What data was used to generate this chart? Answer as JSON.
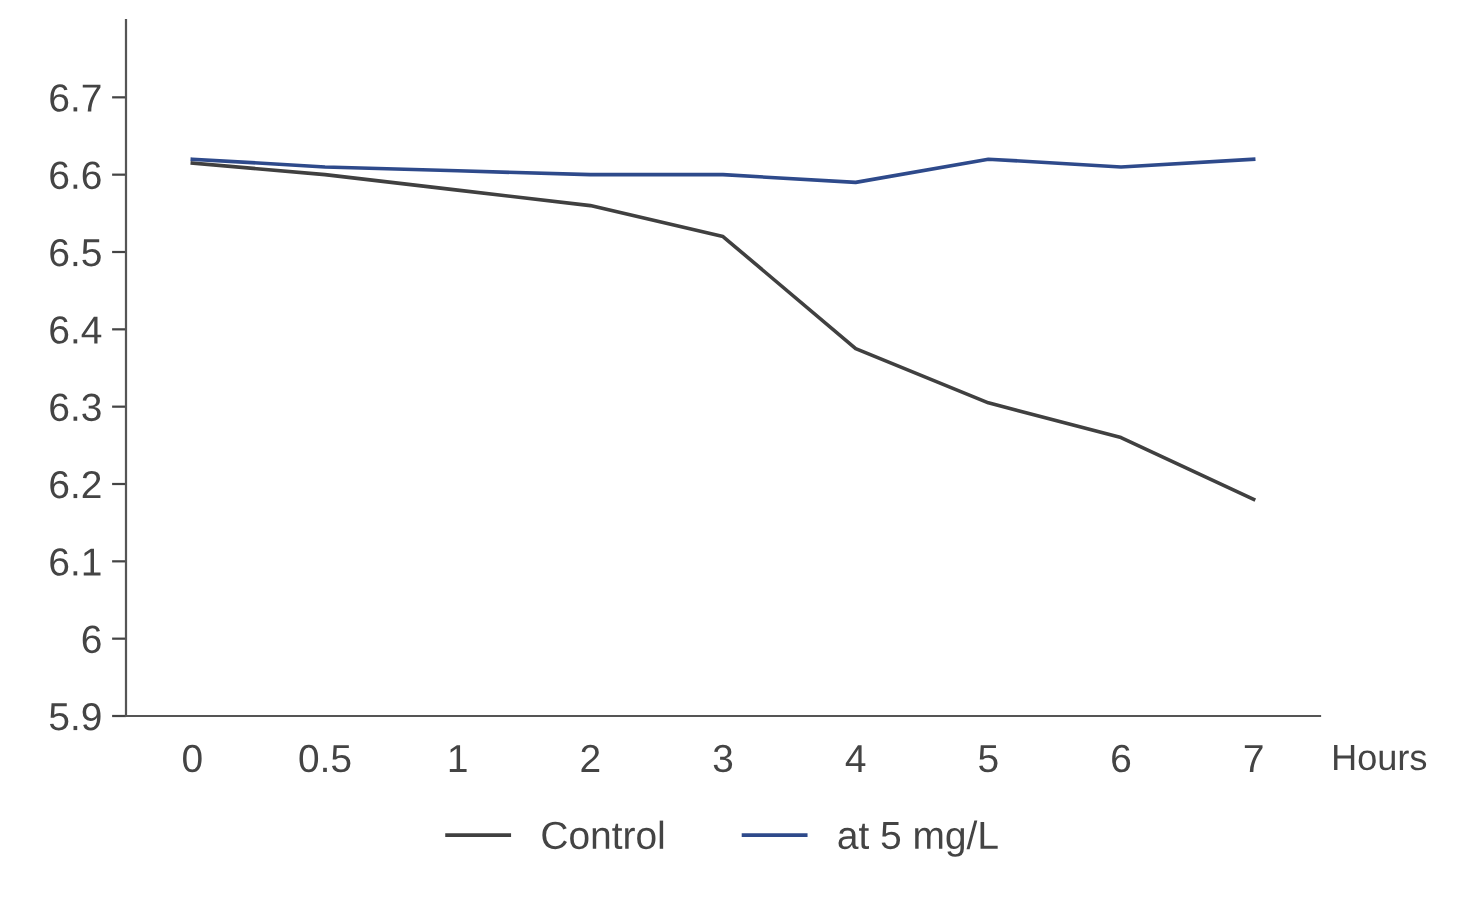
{
  "chart_data": {
    "type": "line",
    "xlabel": "Hours",
    "categories": [
      "0",
      "0.5",
      "1",
      "2",
      "3",
      "4",
      "5",
      "6",
      "7"
    ],
    "series": [
      {
        "name": "Control",
        "color": "#404040",
        "values": [
          6.615,
          6.6,
          6.58,
          6.56,
          6.52,
          6.375,
          6.305,
          6.26,
          6.18
        ]
      },
      {
        "name": "at 5 mg/L",
        "color": "#2e4a8b",
        "values": [
          6.62,
          6.61,
          6.605,
          6.6,
          6.6,
          6.59,
          6.62,
          6.61,
          6.62
        ]
      }
    ],
    "ylim": [
      5.9,
      6.8
    ],
    "yticks": [
      5.9,
      6,
      6.1,
      6.2,
      6.3,
      6.4,
      6.5,
      6.6,
      6.7
    ],
    "grid": false,
    "legend": "bottom",
    "marker": "none",
    "line_style": "solid"
  }
}
